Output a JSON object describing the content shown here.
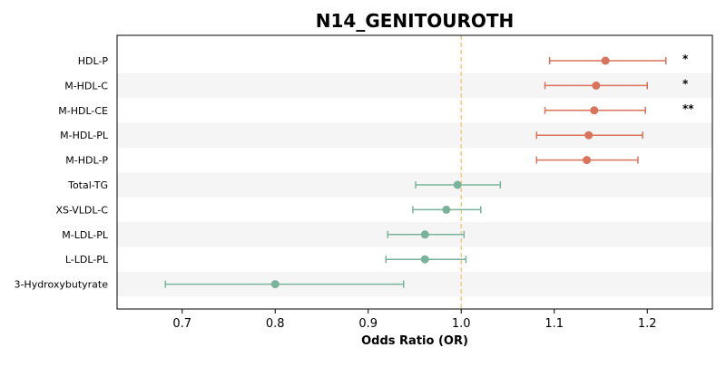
{
  "chart_data": {
    "type": "forest",
    "title": "N14_GENITOUROTH",
    "xlabel": "Odds Ratio (OR)",
    "xlim": [
      0.63,
      1.27
    ],
    "xticks": [
      0.7,
      0.8,
      0.9,
      1.0,
      1.1,
      1.2
    ],
    "xtick_labels": [
      "0.7",
      "0.8",
      "0.9",
      "1.0",
      "1.1",
      "1.2"
    ],
    "reference_line": 1.0,
    "reference_line_style": "dashed",
    "reference_line_color": "#f5c983",
    "grid": false,
    "row_banding": true,
    "band_color": "#f5f5f5",
    "colors": {
      "increased": "#d9735c",
      "decreased": "#7ab39b"
    },
    "points": [
      {
        "label": "HDL-P",
        "or": 1.155,
        "ci_low": 1.095,
        "ci_high": 1.22,
        "sig": "*",
        "group": "increased"
      },
      {
        "label": "M-HDL-C",
        "or": 1.145,
        "ci_low": 1.09,
        "ci_high": 1.2,
        "sig": "*",
        "group": "increased"
      },
      {
        "label": "M-HDL-CE",
        "or": 1.143,
        "ci_low": 1.09,
        "ci_high": 1.198,
        "sig": "**",
        "group": "increased"
      },
      {
        "label": "M-HDL-PL",
        "or": 1.137,
        "ci_low": 1.081,
        "ci_high": 1.195,
        "sig": "",
        "group": "increased"
      },
      {
        "label": "M-HDL-P",
        "or": 1.135,
        "ci_low": 1.081,
        "ci_high": 1.19,
        "sig": "",
        "group": "increased"
      },
      {
        "label": "Total-TG",
        "or": 0.996,
        "ci_low": 0.951,
        "ci_high": 1.042,
        "sig": "",
        "group": "decreased"
      },
      {
        "label": "XS-VLDL-C",
        "or": 0.984,
        "ci_low": 0.948,
        "ci_high": 1.021,
        "sig": "",
        "group": "decreased"
      },
      {
        "label": "M-LDL-PL",
        "or": 0.961,
        "ci_low": 0.921,
        "ci_high": 1.003,
        "sig": "",
        "group": "decreased"
      },
      {
        "label": "L-LDL-PL",
        "or": 0.961,
        "ci_low": 0.919,
        "ci_high": 1.005,
        "sig": "",
        "group": "decreased"
      },
      {
        "label": "3-Hydroxybutyrate",
        "or": 0.8,
        "ci_low": 0.682,
        "ci_high": 0.938,
        "sig": "",
        "group": "decreased"
      }
    ]
  }
}
